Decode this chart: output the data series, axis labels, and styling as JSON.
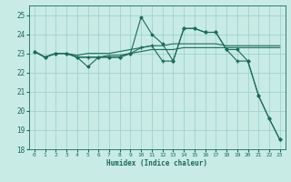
{
  "title": "",
  "xlabel": "Humidex (Indice chaleur)",
  "ylabel": "",
  "background_color": "#c8ebe5",
  "grid_color": "#a0d4cc",
  "line_color": "#1a6b5a",
  "xlim": [
    -0.5,
    23.5
  ],
  "ylim": [
    18,
    25.5
  ],
  "yticks": [
    18,
    19,
    20,
    21,
    22,
    23,
    24,
    25
  ],
  "xticks": [
    0,
    1,
    2,
    3,
    4,
    5,
    6,
    7,
    8,
    9,
    10,
    11,
    12,
    13,
    14,
    15,
    16,
    17,
    18,
    19,
    20,
    21,
    22,
    23
  ],
  "series": [
    [
      23.1,
      22.8,
      23.0,
      23.0,
      22.8,
      22.3,
      22.8,
      22.8,
      22.8,
      23.0,
      24.9,
      24.0,
      23.5,
      22.6,
      24.3,
      24.3,
      24.1,
      24.1,
      23.2,
      23.2,
      22.6,
      20.8,
      19.6,
      18.5
    ],
    [
      23.1,
      22.8,
      23.0,
      23.0,
      22.9,
      23.0,
      23.0,
      23.0,
      23.1,
      23.2,
      23.3,
      23.4,
      23.4,
      23.5,
      23.5,
      23.5,
      23.5,
      23.5,
      23.4,
      23.4,
      23.4,
      23.4,
      23.4,
      23.4
    ],
    [
      23.1,
      22.8,
      23.0,
      23.0,
      22.8,
      22.8,
      22.8,
      22.9,
      22.9,
      23.0,
      23.1,
      23.2,
      23.2,
      23.2,
      23.3,
      23.3,
      23.3,
      23.3,
      23.3,
      23.3,
      23.3,
      23.3,
      23.3,
      23.3
    ],
    [
      23.1,
      22.8,
      23.0,
      23.0,
      22.8,
      22.8,
      22.8,
      22.8,
      22.8,
      23.0,
      23.3,
      23.4,
      22.6,
      22.6,
      24.3,
      24.3,
      24.1,
      24.1,
      23.2,
      22.6,
      22.6,
      20.8,
      19.6,
      18.5
    ]
  ],
  "line_styles": [
    {
      "marker": "D",
      "ms": 1.5,
      "lw": 0.8
    },
    {
      "marker": null,
      "ms": 0,
      "lw": 0.8
    },
    {
      "marker": null,
      "ms": 0,
      "lw": 0.8
    },
    {
      "marker": "+",
      "ms": 3.0,
      "lw": 0.8
    }
  ]
}
